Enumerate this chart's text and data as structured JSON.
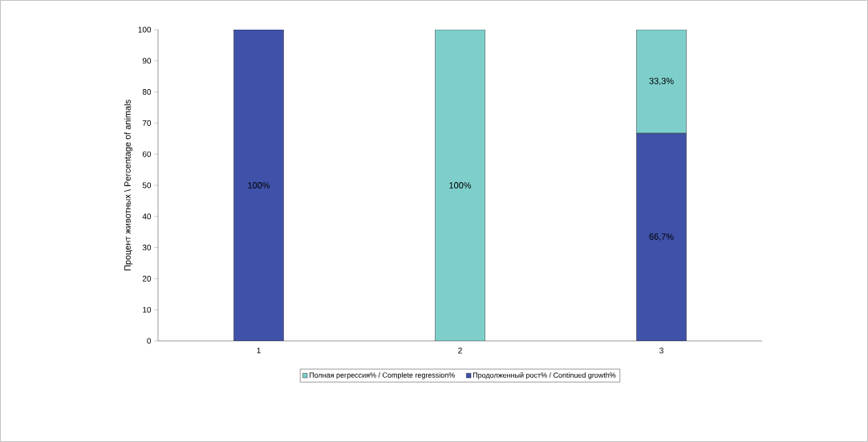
{
  "chart_data": {
    "type": "bar",
    "stacked": true,
    "ylabel": "Процент животных \\ Percentage of animals",
    "categories": [
      "1",
      "2",
      "3"
    ],
    "series": [
      {
        "name": "Продолженный рост% / Continued growth%",
        "color": "#3f51a8",
        "values": [
          100,
          0,
          66.7
        ],
        "value_labels": [
          "100%",
          null,
          "66,7%"
        ]
      },
      {
        "name": "Полная регрессия% / Complete regression%",
        "color": "#7ecfcc",
        "values": [
          0,
          100,
          33.3
        ],
        "value_labels": [
          null,
          "100%",
          "33,3%"
        ]
      }
    ],
    "ylim": [
      0,
      100
    ],
    "yticks": [
      0,
      10,
      20,
      30,
      40,
      50,
      60,
      70,
      80,
      90,
      100
    ],
    "grid": false,
    "legend": "bottom"
  }
}
